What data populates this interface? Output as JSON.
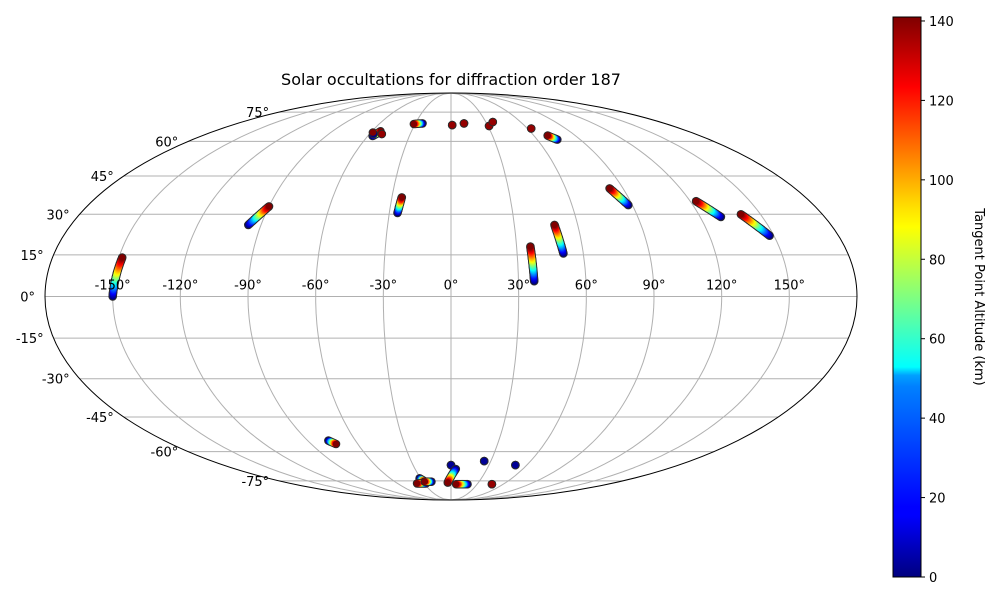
{
  "chart_data": {
    "type": "scatter",
    "projection": "mollweide",
    "title": "Solar occultations for diffraction order 187",
    "colorbar": {
      "label": "Tangent Point Altitude (km)",
      "range": [
        0,
        141
      ],
      "ticks": [
        "0",
        "20",
        "40",
        "60",
        "80",
        "100",
        "120",
        "140"
      ],
      "colormap": "jet"
    },
    "grid": true,
    "x_ticks": [
      "-150°",
      "-120°",
      "-90°",
      "-60°",
      "-30°",
      "0°",
      "30°",
      "60°",
      "90°",
      "120°",
      "150°"
    ],
    "y_ticks": [
      "-75°",
      "-60°",
      "-45°",
      "-30°",
      "-15°",
      "0°",
      "15°",
      "30°",
      "45°",
      "60°",
      "75°"
    ],
    "tracks": [
      {
        "lon0": -150,
        "lat0": 0,
        "lon1": -148.5,
        "lat1": 14
      },
      {
        "lon0": -96,
        "lat0": 26,
        "lon1": -90,
        "lat1": 33
      },
      {
        "lon0": -56.5,
        "lat0": 62.5,
        "lon1": -53.5,
        "lat1": 64.8
      },
      {
        "lon0": -57,
        "lat0": 63.5,
        "lon1": -58.5,
        "lat1": 64.2
      },
      {
        "lon0": -51,
        "lat0": 63.5,
        "lon1": -51,
        "lat1": 63.5
      },
      {
        "lon0": -24,
        "lat0": 68.8,
        "lon1": -31,
        "lat1": 68.5
      },
      {
        "lon0": -26,
        "lat0": 30.5,
        "lon1": -25,
        "lat1": 36.5
      },
      {
        "lon0": 1,
        "lat0": 67.9,
        "lon1": 1,
        "lat1": 67.9
      },
      {
        "lon0": 11,
        "lat0": 68.8,
        "lon1": 11,
        "lat1": 68.8
      },
      {
        "lon0": 31,
        "lat0": 67.5,
        "lon1": 31,
        "lat1": 67.5
      },
      {
        "lon0": 36,
        "lat0": 69.5,
        "lon1": 36,
        "lat1": 69.5
      },
      {
        "lon0": 37,
        "lat0": 5.5,
        "lon1": 36.3,
        "lat1": 18
      },
      {
        "lon0": 51,
        "lat0": 15.5,
        "lon1": 49,
        "lat1": 26
      },
      {
        "lon0": 63,
        "lat0": 66.2,
        "lon1": 63,
        "lat1": 66.2
      },
      {
        "lon0": 74,
        "lat0": 60.8,
        "lon1": 70,
        "lat1": 62.7
      },
      {
        "lon0": 88,
        "lat0": 33.5,
        "lon1": 83,
        "lat1": 40
      },
      {
        "lon0": 130,
        "lat0": 29,
        "lon1": 123,
        "lat1": 35
      },
      {
        "lon0": 148,
        "lat0": 22,
        "lon1": 140.5,
        "lat1": 30
      },
      {
        "lon0": -77,
        "lat0": -55,
        "lon1": -74,
        "lat1": -56.5
      },
      {
        "lon0": -31,
        "lat0": -73.5,
        "lon1": -28.5,
        "lat1": -75
      },
      {
        "lon0": -28,
        "lat0": -76.5,
        "lon1": -38,
        "lat1": -76.5
      },
      {
        "lon0": -21,
        "lat0": -75.5,
        "lon1": -28,
        "lat1": -75.5
      },
      {
        "lon0": 0,
        "lat0": -66.5,
        "lon1": 0,
        "lat1": -66.5
      },
      {
        "lon0": 4,
        "lat0": -68.5,
        "lon1": -3.5,
        "lat1": -76
      },
      {
        "lon0": 19,
        "lat0": -77,
        "lon1": 6,
        "lat1": -77
      },
      {
        "lon0": 25,
        "lat0": -64.5,
        "lon1": 25,
        "lat1": -64.5
      },
      {
        "lon0": 51,
        "lat0": -66.5,
        "lon1": 51,
        "lat1": -66.5
      },
      {
        "lon0": 47,
        "lat0": -77,
        "lon1": 47,
        "lat1": -77,
        "c": 138
      }
    ]
  }
}
